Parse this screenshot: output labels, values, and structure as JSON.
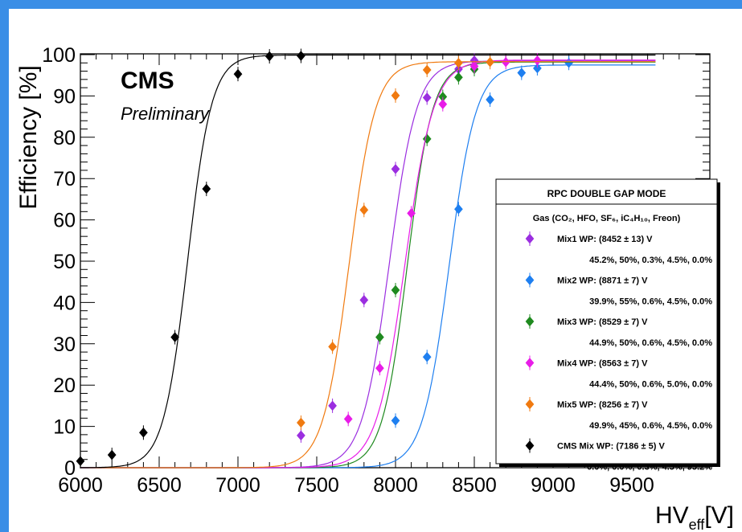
{
  "chart_data": {
    "type": "scatter",
    "xlabel": "HV",
    "xlabel_sub": "eff",
    "xlabel_unit": "[V]",
    "ylabel": "Efficiency [%]",
    "xlim": [
      6000,
      9800
    ],
    "ylim": [
      0,
      100
    ],
    "x_ticks": [
      6000,
      6500,
      7000,
      7500,
      8000,
      8500,
      9000,
      9500
    ],
    "y_ticks": [
      0,
      10,
      20,
      30,
      40,
      50,
      60,
      70,
      80,
      90,
      100
    ],
    "annotations": {
      "experiment": "CMS",
      "status": "Preliminary"
    },
    "legend": {
      "position": "right",
      "title": "RPC DOUBLE GAP MODE",
      "gas_header": "Gas  (CO₂, HFO, SF₆, iC₄H₁₀, Freon)"
    },
    "series": [
      {
        "name": "Mix1 WP: (8452 ± 13) V",
        "composition": "45.2%, 50%, 0.3%, 4.5%,  0.0%",
        "color": "#9b2ee0",
        "fit": {
          "hv50": 7960,
          "k": 0.0115,
          "plateau": 98.5
        },
        "x": [
          7400,
          7600,
          7800,
          8000,
          8200,
          8400,
          8500
        ],
        "y": [
          7.8,
          15.0,
          40.6,
          72.3,
          89.6,
          96.5,
          98.6
        ]
      },
      {
        "name": "Mix2 WP: (8871 ±  7) V",
        "composition": "39.9%, 55%, 0.6%, 4.5%,  0.0%",
        "color": "#1e7ff0",
        "fit": {
          "hv50": 8340,
          "k": 0.0118,
          "plateau": 97.5
        },
        "x": [
          8000,
          8200,
          8400,
          8600,
          8800,
          8900,
          9100
        ],
        "y": [
          11.4,
          26.8,
          62.6,
          89.1,
          95.6,
          96.7,
          98.0
        ]
      },
      {
        "name": "Mix3 WP: (8529 ±  7) V",
        "composition": "44.9%, 50%, 0.6%, 4.5%,  0.0%",
        "color": "#1f8a1f",
        "fit": {
          "hv50": 8075,
          "k": 0.0125,
          "plateau": 98.2
        },
        "x": [
          7900,
          8000,
          8200,
          8300,
          8400,
          8500
        ],
        "y": [
          31.6,
          43.0,
          79.6,
          89.8,
          94.5,
          96.5
        ]
      },
      {
        "name": "Mix4 WP: (8563 ±  7) V",
        "composition": "44.4%, 50%, 0.6%, 5.0%,  0.0%",
        "color": "#e81ce8",
        "fit": {
          "hv50": 8060,
          "k": 0.011,
          "plateau": 98.7
        },
        "x": [
          7700,
          7900,
          8100,
          8300,
          8500,
          8700,
          8900
        ],
        "y": [
          11.8,
          24.1,
          61.6,
          88.0,
          97.2,
          98.2,
          98.6
        ]
      },
      {
        "name": "Mix5 WP: (8256 ±  7) V",
        "composition": "49.9%, 45%, 0.6%, 4.5%,  0.0%",
        "color": "#f07a10",
        "fit": {
          "hv50": 7705,
          "k": 0.012,
          "plateau": 98.3
        },
        "x": [
          7400,
          7600,
          7800,
          8000,
          8200,
          8400,
          8600
        ],
        "y": [
          10.9,
          29.3,
          62.4,
          90.1,
          96.3,
          98.0,
          98.2
        ]
      },
      {
        "name": "CMS Mix WP: (7186 ±  5) V",
        "composition": "0.0%, 0.0%, 0.3%, 4.5%, 95.2%",
        "color": "#000000",
        "fit": {
          "hv50": 6680,
          "k": 0.013,
          "plateau": 99.9
        },
        "x": [
          6000,
          6200,
          6400,
          6600,
          6800,
          7000,
          7200,
          7400
        ],
        "y": [
          1.6,
          3.1,
          8.5,
          31.6,
          67.5,
          95.3,
          99.6,
          99.7
        ]
      }
    ]
  }
}
